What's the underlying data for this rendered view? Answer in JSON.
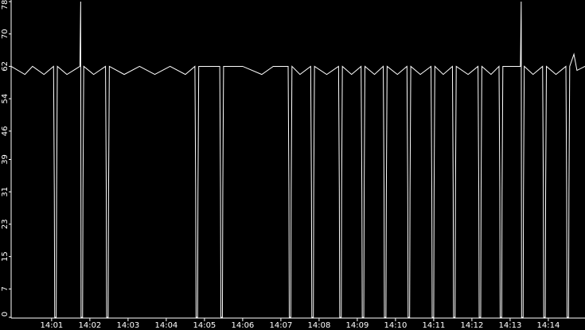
{
  "chart_data": {
    "type": "line",
    "x": [
      839.94,
      840.3,
      840.5,
      840.8,
      841.05,
      841.07,
      841.08,
      841.12,
      841.13,
      841.15,
      841.4,
      841.74,
      841.76,
      841.77,
      841.81,
      841.82,
      841.84,
      842.1,
      842.41,
      842.43,
      842.44,
      842.48,
      842.49,
      842.51,
      842.9,
      843.3,
      843.7,
      844.1,
      844.5,
      844.75,
      844.77,
      844.78,
      844.82,
      844.83,
      844.85,
      845.1,
      845.4,
      845.42,
      845.43,
      845.47,
      845.48,
      845.5,
      846.0,
      846.5,
      846.8,
      847.19,
      847.21,
      847.22,
      847.26,
      847.27,
      847.29,
      847.5,
      847.78,
      847.8,
      847.81,
      847.85,
      847.86,
      847.88,
      848.2,
      848.51,
      848.53,
      848.54,
      848.58,
      848.59,
      848.61,
      848.85,
      849.1,
      849.12,
      849.13,
      849.17,
      849.18,
      849.2,
      849.45,
      849.68,
      849.7,
      849.71,
      849.75,
      849.76,
      849.78,
      850.05,
      850.3,
      850.32,
      850.33,
      850.37,
      850.38,
      850.4,
      850.65,
      850.93,
      850.95,
      850.96,
      851.0,
      851.01,
      851.03,
      851.25,
      851.49,
      851.51,
      851.52,
      851.56,
      851.57,
      851.59,
      851.9,
      852.16,
      852.18,
      852.19,
      852.23,
      852.24,
      852.26,
      852.5,
      852.71,
      852.73,
      852.74,
      852.78,
      852.79,
      852.81,
      853.27,
      853.29,
      853.3,
      853.34,
      853.35,
      853.37,
      853.6,
      853.85,
      853.87,
      853.88,
      853.92,
      853.93,
      853.95,
      854.2,
      854.46,
      854.48,
      854.49,
      854.53,
      854.54,
      854.56,
      854.67,
      854.75,
      854.96
    ],
    "series": [
      {
        "color": "#ffffff",
        "values": [
          62,
          60,
          62,
          60,
          62,
          31,
          0,
          0,
          31,
          62,
          60,
          62,
          78,
          0,
          0,
          31,
          62,
          60,
          62,
          31,
          0,
          0,
          31,
          62,
          60,
          62,
          60,
          62,
          60,
          62,
          31,
          0,
          0,
          31,
          62,
          62,
          62,
          31,
          0,
          0,
          31,
          62,
          62,
          60,
          62,
          62,
          31,
          0,
          0,
          31,
          62,
          60,
          62,
          31,
          0,
          0,
          31,
          62,
          60,
          62,
          31,
          0,
          0,
          31,
          62,
          60,
          62,
          31,
          0,
          0,
          31,
          62,
          60,
          62,
          31,
          0,
          0,
          31,
          62,
          60,
          62,
          31,
          0,
          0,
          31,
          62,
          60,
          62,
          31,
          0,
          0,
          31,
          62,
          60,
          62,
          31,
          0,
          0,
          31,
          62,
          60,
          62,
          31,
          0,
          0,
          31,
          62,
          60,
          62,
          31,
          0,
          0,
          31,
          62,
          62,
          78,
          0,
          0,
          31,
          62,
          60,
          62,
          31,
          0,
          0,
          31,
          62,
          60,
          62,
          31,
          0,
          0,
          31,
          62,
          65,
          61,
          62
        ]
      }
    ],
    "xlim": [
      839.94,
      854.96
    ],
    "xticks": [
      {
        "value": 841,
        "label": "14:01"
      },
      {
        "value": 842,
        "label": "14:02"
      },
      {
        "value": 843,
        "label": "14:03"
      },
      {
        "value": 844,
        "label": "14:04"
      },
      {
        "value": 845,
        "label": "14:05"
      },
      {
        "value": 846,
        "label": "14:06"
      },
      {
        "value": 847,
        "label": "14:07"
      },
      {
        "value": 848,
        "label": "14:08"
      },
      {
        "value": 849,
        "label": "14:09"
      },
      {
        "value": 850,
        "label": "14:10"
      },
      {
        "value": 851,
        "label": "14:11"
      },
      {
        "value": 852,
        "label": "14:12"
      },
      {
        "value": 853,
        "label": "14:13"
      },
      {
        "value": 854,
        "label": "14:14"
      }
    ],
    "ylim": [
      0,
      78
    ],
    "yticks": [
      0,
      7,
      15,
      23,
      31,
      39,
      46,
      54,
      62,
      70,
      78
    ]
  }
}
